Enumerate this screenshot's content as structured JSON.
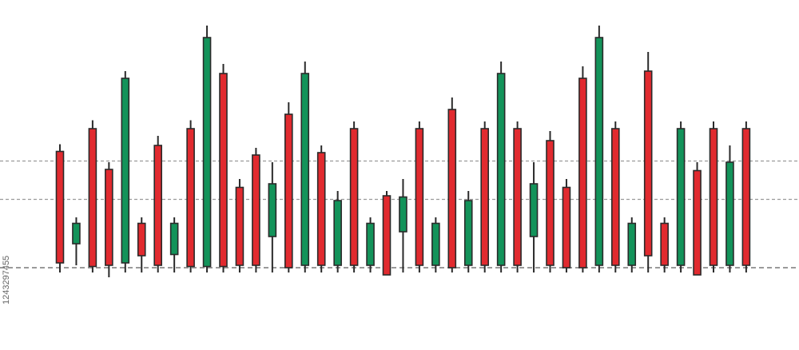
{
  "stock_id": "1243297455",
  "colors": {
    "bull": "#13935a",
    "bear": "#e12a2f",
    "outline": "#2a2a2a",
    "gridline": "#9a9a9a",
    "background": "#ffffff"
  },
  "chart_data": {
    "type": "candlestick",
    "title": "",
    "xlabel": "",
    "ylabel": "",
    "ylim": [
      0,
      100
    ],
    "grid": false,
    "reference_lines": [
      16,
      44.5,
      60.5
    ],
    "candles": [
      {
        "dir": "bear",
        "open": 64.5,
        "close": 18,
        "high": 67.5,
        "low": 14
      },
      {
        "dir": "bull",
        "open": 26,
        "close": 34.5,
        "high": 37,
        "low": 17
      },
      {
        "dir": "bear",
        "open": 74,
        "close": 16.5,
        "high": 77.5,
        "low": 14
      },
      {
        "dir": "bear",
        "open": 57,
        "close": 17,
        "high": 60,
        "low": 12
      },
      {
        "dir": "bull",
        "open": 18,
        "close": 95,
        "high": 98,
        "low": 14
      },
      {
        "dir": "bear",
        "open": 34.5,
        "close": 21,
        "high": 37,
        "low": 14
      },
      {
        "dir": "bear",
        "open": 67,
        "close": 17,
        "high": 71,
        "low": 14
      },
      {
        "dir": "bull",
        "open": 21.5,
        "close": 34.5,
        "high": 37,
        "low": 14
      },
      {
        "dir": "bear",
        "open": 74,
        "close": 16.5,
        "high": 77.5,
        "low": 14
      },
      {
        "dir": "bull",
        "open": 16.5,
        "close": 112,
        "high": 117,
        "low": 14
      },
      {
        "dir": "bear",
        "open": 97,
        "close": 16.5,
        "high": 101,
        "low": 14
      },
      {
        "dir": "bear",
        "open": 49.5,
        "close": 17,
        "high": 53,
        "low": 14
      },
      {
        "dir": "bear",
        "open": 63,
        "close": 17,
        "high": 66,
        "low": 14
      },
      {
        "dir": "bull",
        "open": 29,
        "close": 51,
        "high": 60,
        "low": 14
      },
      {
        "dir": "bear",
        "open": 80,
        "close": 16,
        "high": 85,
        "low": 14
      },
      {
        "dir": "bull",
        "open": 17,
        "close": 97,
        "high": 102,
        "low": 14
      },
      {
        "dir": "bear",
        "open": 64,
        "close": 17,
        "high": 67,
        "low": 14
      },
      {
        "dir": "bull",
        "open": 17,
        "close": 44,
        "high": 48,
        "low": 14
      },
      {
        "dir": "bear",
        "open": 74,
        "close": 17,
        "high": 77,
        "low": 14
      },
      {
        "dir": "bull",
        "open": 17,
        "close": 34.5,
        "high": 37,
        "low": 14
      },
      {
        "dir": "bear",
        "open": 46,
        "close": 13,
        "high": 48,
        "low": 14
      },
      {
        "dir": "bull",
        "open": 31,
        "close": 45.5,
        "high": 53,
        "low": 14
      },
      {
        "dir": "bear",
        "open": 74,
        "close": 17,
        "high": 77,
        "low": 14
      },
      {
        "dir": "bull",
        "open": 17,
        "close": 34.5,
        "high": 37,
        "low": 14
      },
      {
        "dir": "bear",
        "open": 82,
        "close": 16,
        "high": 87,
        "low": 14
      },
      {
        "dir": "bull",
        "open": 17,
        "close": 44,
        "high": 48,
        "low": 14
      },
      {
        "dir": "bear",
        "open": 74,
        "close": 17,
        "high": 77,
        "low": 14
      },
      {
        "dir": "bull",
        "open": 17,
        "close": 97,
        "high": 102,
        "low": 14
      },
      {
        "dir": "bear",
        "open": 74,
        "close": 17,
        "high": 77,
        "low": 14
      },
      {
        "dir": "bull",
        "open": 29,
        "close": 51,
        "high": 60,
        "low": 14
      },
      {
        "dir": "bear",
        "open": 69,
        "close": 17,
        "high": 73,
        "low": 14
      },
      {
        "dir": "bear",
        "open": 49.5,
        "close": 16,
        "high": 53,
        "low": 14
      },
      {
        "dir": "bear",
        "open": 95,
        "close": 16,
        "high": 100,
        "low": 14
      },
      {
        "dir": "bull",
        "open": 17,
        "close": 112,
        "high": 117,
        "low": 14
      },
      {
        "dir": "bear",
        "open": 74,
        "close": 17,
        "high": 77,
        "low": 14
      },
      {
        "dir": "bull",
        "open": 17,
        "close": 34.5,
        "high": 37,
        "low": 14
      },
      {
        "dir": "bear",
        "open": 98,
        "close": 21,
        "high": 106,
        "low": 14
      },
      {
        "dir": "bear",
        "open": 34.5,
        "close": 17,
        "high": 37,
        "low": 14
      },
      {
        "dir": "bull",
        "open": 17,
        "close": 74,
        "high": 77,
        "low": 14
      },
      {
        "dir": "bear",
        "open": 56.5,
        "close": 13,
        "high": 60,
        "low": 14
      },
      {
        "dir": "bear",
        "open": 74,
        "close": 17,
        "high": 77,
        "low": 14
      },
      {
        "dir": "bull",
        "open": 17,
        "close": 60,
        "high": 67,
        "low": 14
      },
      {
        "dir": "bear",
        "open": 74,
        "close": 17,
        "high": 77,
        "low": 14
      }
    ]
  }
}
